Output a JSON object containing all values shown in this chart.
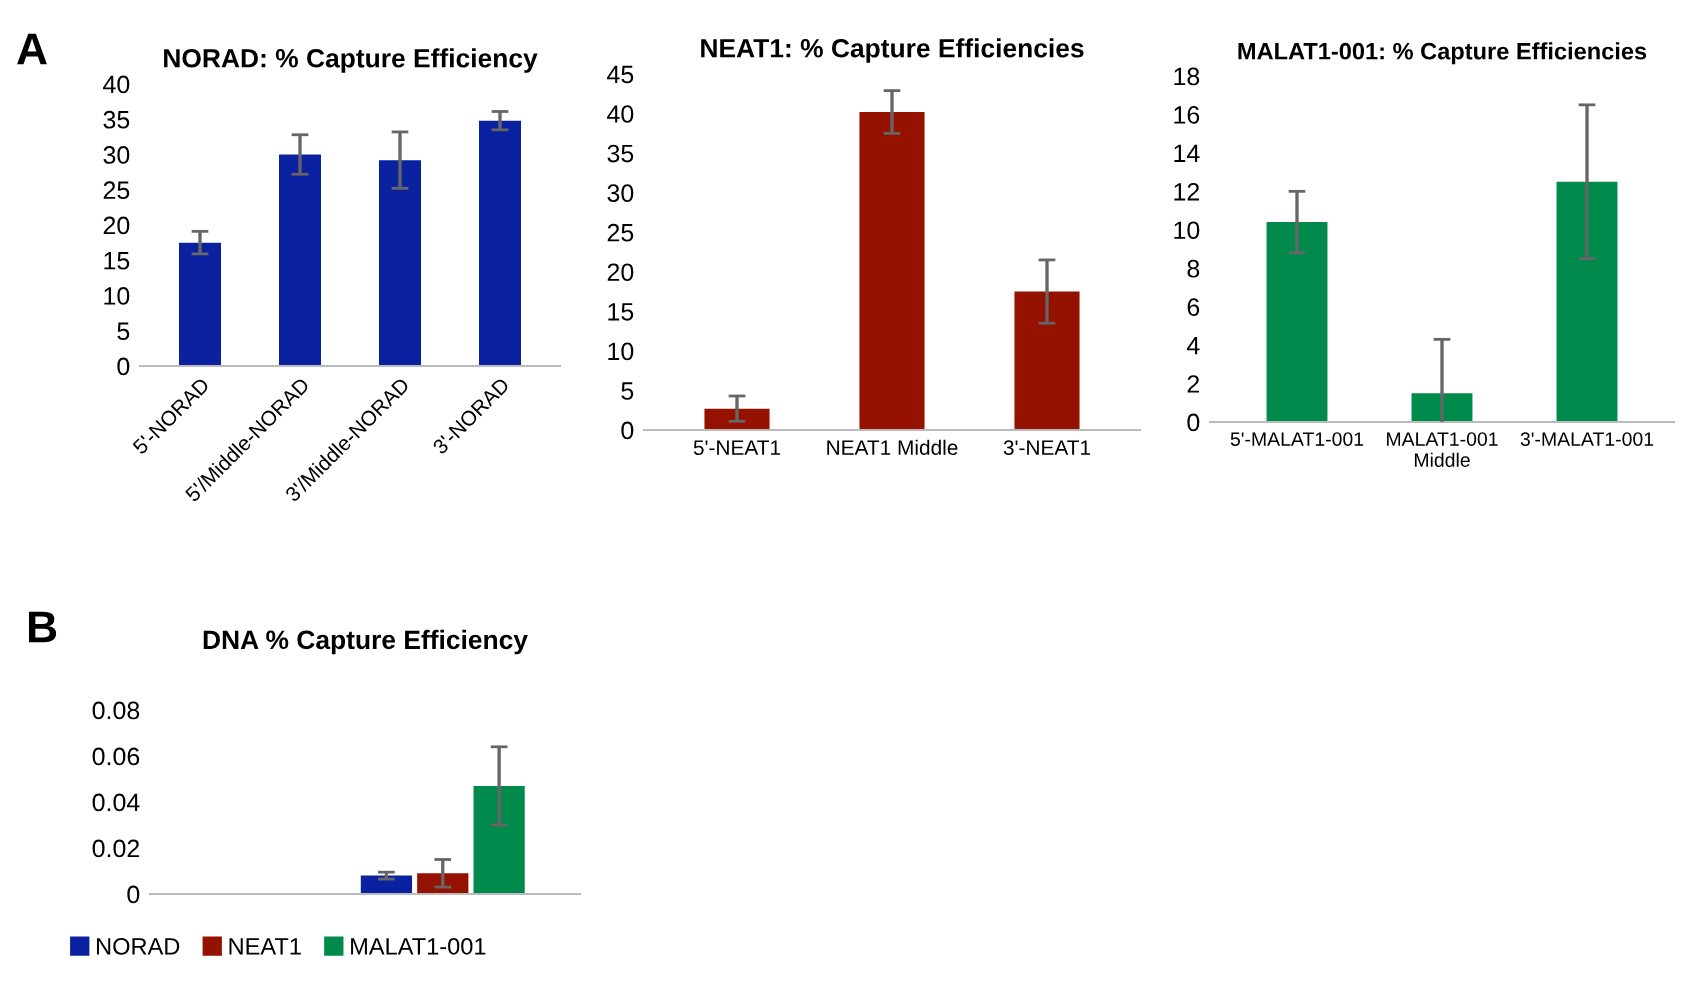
{
  "chart_data": [
    {
      "type": "bar",
      "title": "NORAD: % Capture Efficiency",
      "annotations": [
        "A"
      ],
      "categories": [
        "5'-NORAD",
        "5'/Middle-NORAD",
        "3'/Middle-NORAD",
        "3'-NORAD"
      ],
      "values": [
        17.5,
        30,
        29.2,
        34.8
      ],
      "errors": [
        1.6,
        2.8,
        4,
        1.3
      ],
      "color": "#0a22a0",
      "ylim": [
        0,
        40
      ],
      "yticks": [
        0,
        5,
        10,
        15,
        20,
        25,
        30,
        35,
        40
      ],
      "grid": false,
      "legend": false
    },
    {
      "type": "bar",
      "title": "NEAT1: % Capture Efficiencies",
      "categories": [
        "5'-NEAT1",
        "NEAT1 Middle",
        "3'-NEAT1"
      ],
      "values": [
        2.7,
        40.2,
        17.5
      ],
      "errors": [
        1.6,
        2.7,
        4
      ],
      "color": "#961200",
      "ylim": [
        0,
        45
      ],
      "yticks": [
        0,
        5,
        10,
        15,
        20,
        25,
        30,
        35,
        40,
        45
      ],
      "grid": false,
      "legend": false
    },
    {
      "type": "bar",
      "title": "MALAT1-001: % Capture Efficiencies",
      "categories": [
        "5'-MALAT1-001",
        "MALAT1-001 Middle",
        "3'-MALAT1-001"
      ],
      "values": [
        10.4,
        1.5,
        12.5
      ],
      "errors": [
        1.6,
        2.8,
        4
      ],
      "color": "#008a4c",
      "ylim": [
        0,
        18
      ],
      "yticks": [
        0,
        2,
        4,
        6,
        8,
        10,
        12,
        14,
        16,
        18
      ],
      "grid": false,
      "legend": false
    },
    {
      "type": "bar",
      "title": "DNA % Capture Efficiency",
      "annotations": [
        "B"
      ],
      "categories": [
        null
      ],
      "series": [
        {
          "name": "NORAD",
          "color": "#0a22a0",
          "values": [
            0.008
          ],
          "errors": [
            0.0015
          ]
        },
        {
          "name": "NEAT1",
          "color": "#961200",
          "values": [
            0.009
          ],
          "errors": [
            0.006
          ]
        },
        {
          "name": "MALAT1-001",
          "color": "#008a4c",
          "values": [
            0.047
          ],
          "errors": [
            0.017
          ]
        }
      ],
      "ylim": [
        0,
        0.08
      ],
      "yticks": [
        0,
        0.02,
        0.04,
        0.06,
        0.08
      ],
      "grid": false,
      "legend": "bottom"
    }
  ]
}
